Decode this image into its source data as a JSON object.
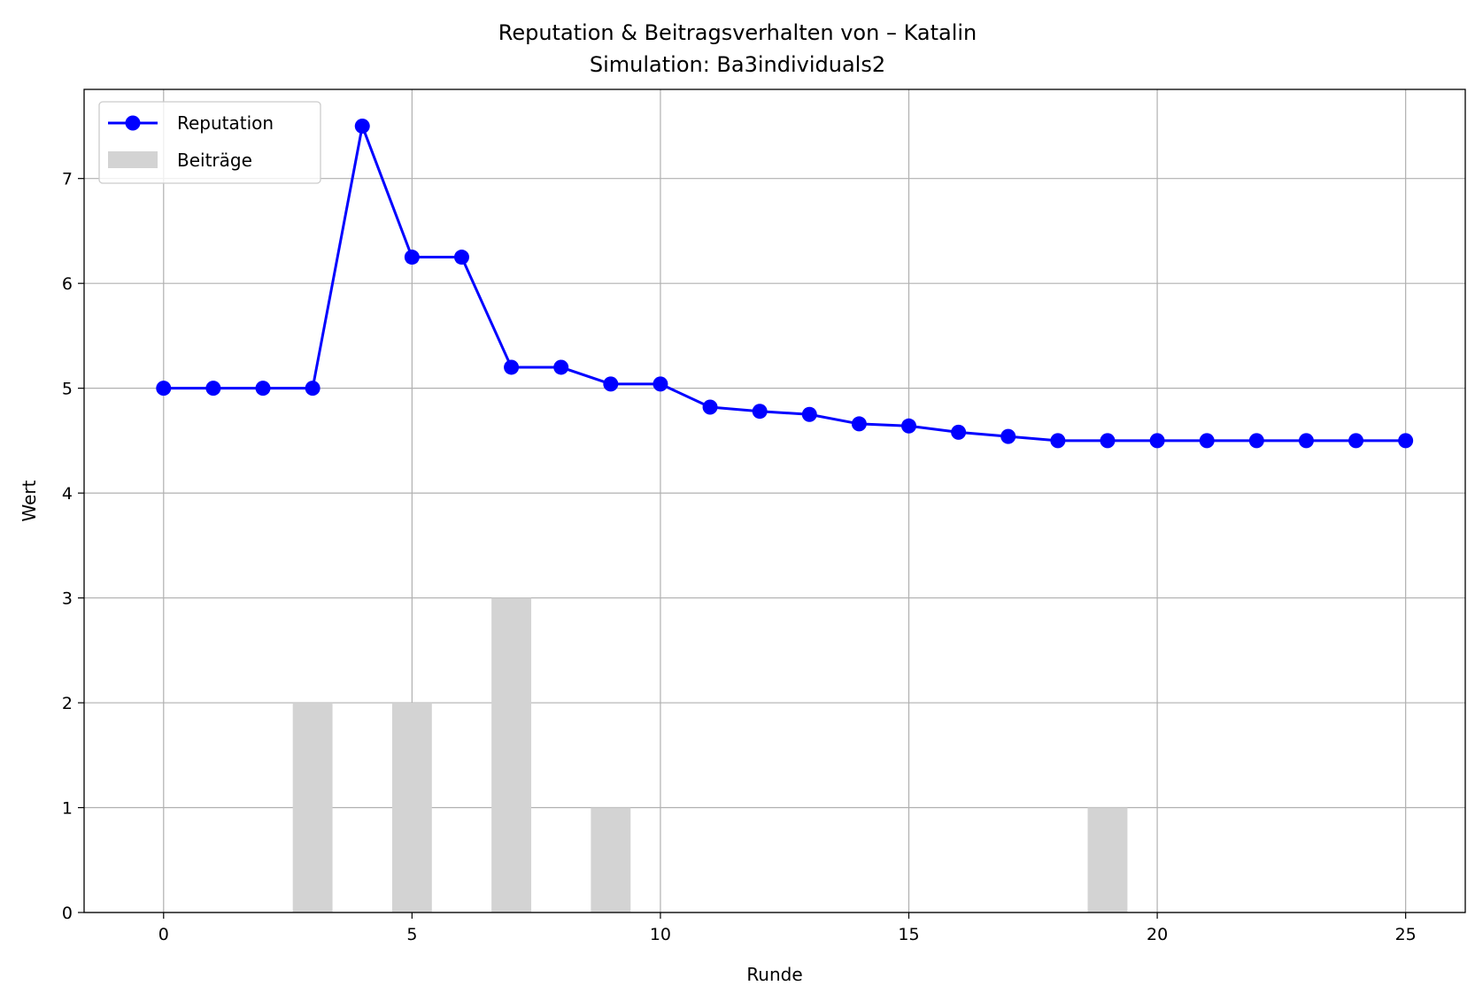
{
  "chart_data": {
    "type": "line",
    "title": "Reputation & Beitragsverhalten von – Katalin",
    "subtitle": "Simulation: Ba3individuals2",
    "xlabel": "Runde",
    "ylabel": "Wert",
    "xlim": [
      -1.6,
      26.2
    ],
    "ylim": [
      0,
      7.85
    ],
    "xticks": [
      0,
      5,
      10,
      15,
      20,
      25
    ],
    "yticks": [
      0,
      1,
      2,
      3,
      4,
      5,
      6,
      7
    ],
    "grid": true,
    "legend_position": "upper-left",
    "series": [
      {
        "name": "Reputation",
        "kind": "line",
        "marker": "circle",
        "color": "#0000ff",
        "x": [
          0,
          1,
          2,
          3,
          4,
          5,
          6,
          7,
          8,
          9,
          10,
          11,
          12,
          13,
          14,
          15,
          16,
          17,
          18,
          19,
          20,
          21,
          22,
          23,
          24,
          25
        ],
        "values": [
          5.0,
          5.0,
          5.0,
          5.0,
          7.5,
          6.25,
          6.25,
          5.2,
          5.2,
          5.04,
          5.04,
          4.82,
          4.78,
          4.75,
          4.66,
          4.64,
          4.58,
          4.54,
          4.5,
          4.5,
          4.5,
          4.5,
          4.5,
          4.5,
          4.5,
          4.5
        ]
      },
      {
        "name": "Beiträge",
        "kind": "bar",
        "color": "#d3d3d3",
        "x": [
          3,
          5,
          7,
          9,
          19
        ],
        "values": [
          2,
          2,
          3,
          1,
          1
        ]
      }
    ]
  }
}
